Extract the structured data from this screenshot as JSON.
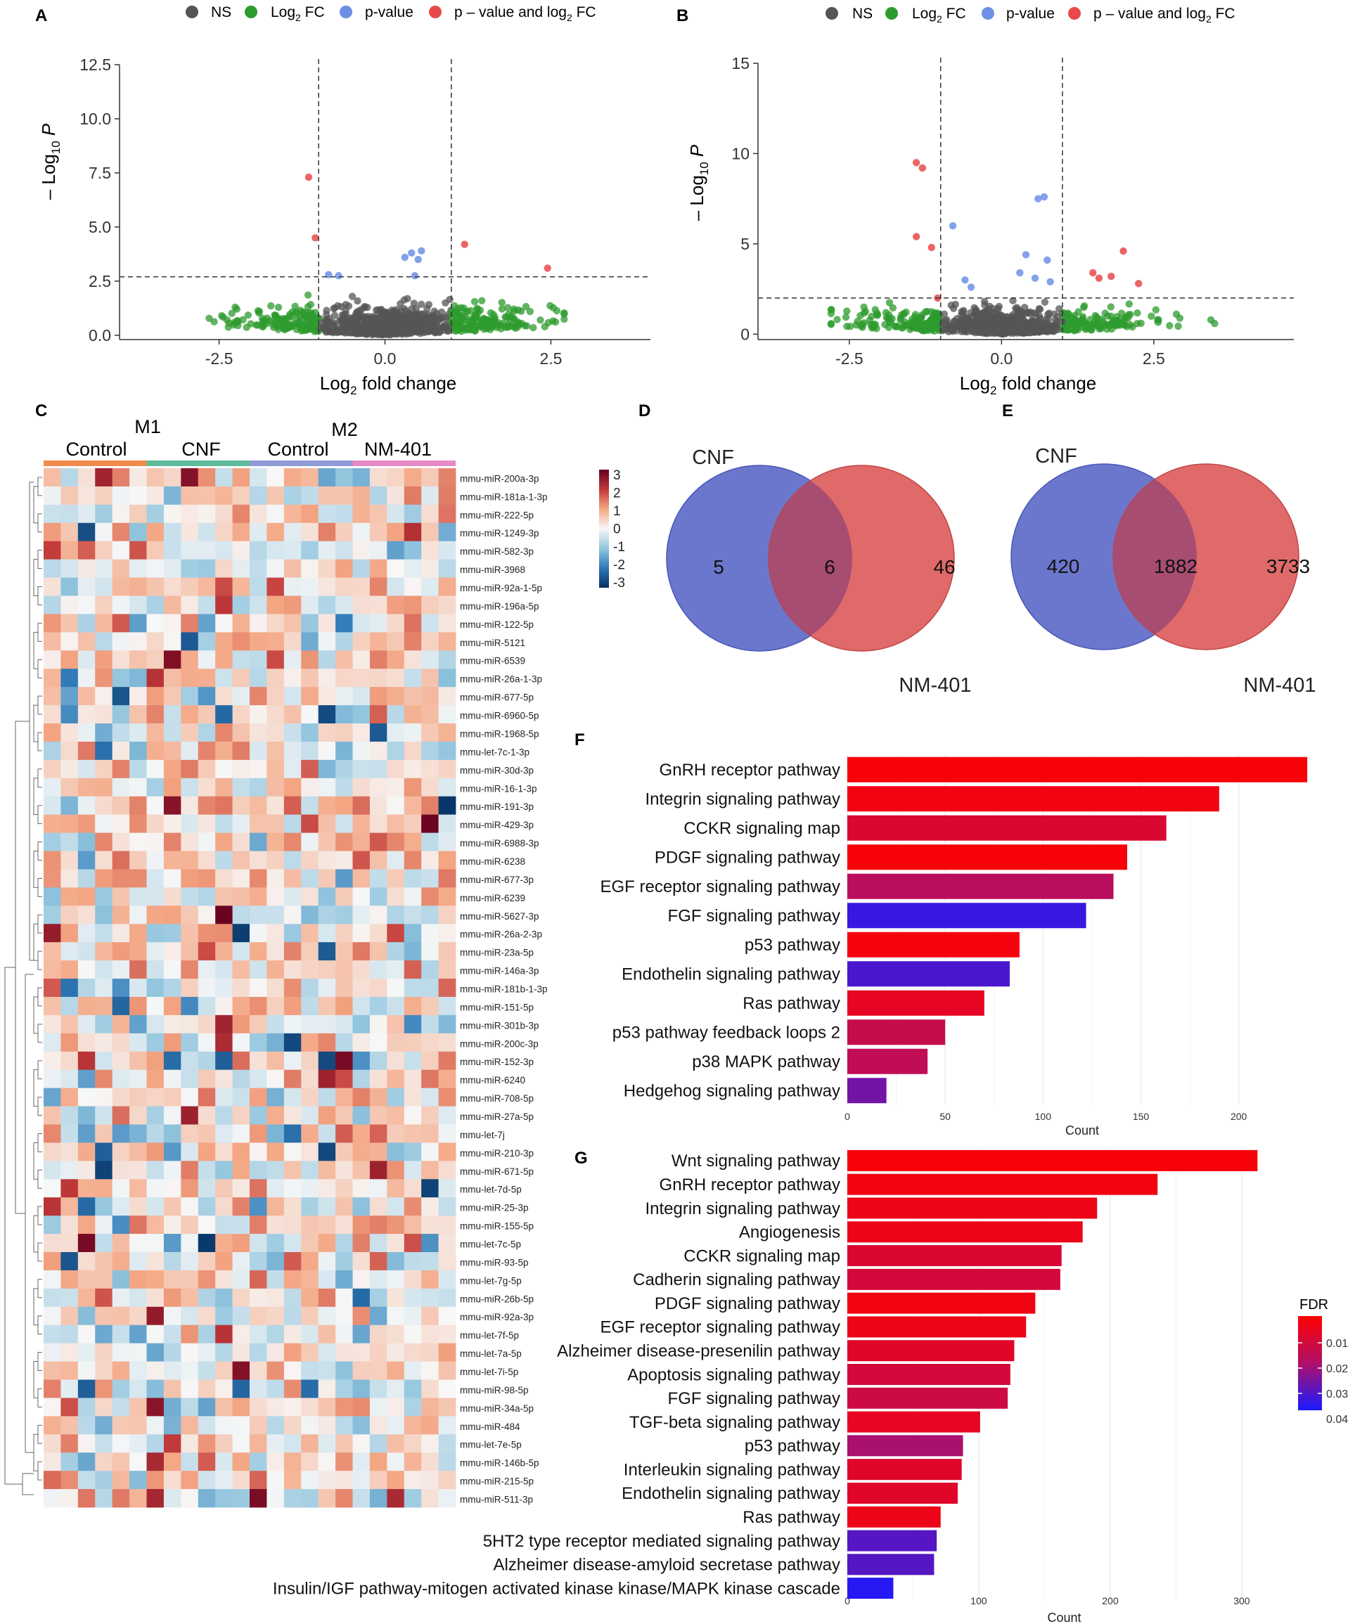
{
  "panels": {
    "A": "A",
    "B": "B",
    "C": "C",
    "D": "D",
    "E": "E",
    "F": "F",
    "G": "G"
  },
  "volcano_legend": {
    "ns": "NS",
    "log2fc": "Log",
    "log2fc_sub": "2",
    "log2fc_tail": " FC",
    "pvalue": "p-value",
    "both": "p – value and log",
    "both_sub": "2",
    "both_tail": " FC",
    "colors": {
      "ns": "#555555",
      "log2fc": "#2e9b2e",
      "pvalue": "#6d8fe6",
      "both": "#e84a4a"
    }
  },
  "volcano_axes": {
    "xlabel_pre": "Log",
    "xlabel_sub": "2",
    "xlabel_post": " fold change",
    "ylabel_pre": "– Log",
    "ylabel_sub": "10",
    "ylabel_post": " P"
  },
  "venn_D": {
    "left_label": "CNF",
    "right_label": "NM-401",
    "left_only": "5",
    "both": "6",
    "right_only": "46",
    "colors": {
      "left": "#6b77cc",
      "right": "#e06a6a",
      "overlap": "#a14a72"
    }
  },
  "venn_E": {
    "left_label": "CNF",
    "right_label": "NM-401",
    "left_only": "420",
    "both": "1882",
    "right_only": "3733",
    "colors": {
      "left": "#6b77cc",
      "right": "#e06a6a",
      "overlap": "#a14a72"
    }
  },
  "heatmap": {
    "group_top": [
      "M1",
      "M2"
    ],
    "group_bottom": [
      "Control",
      "CNF",
      "Control",
      "NM-401"
    ],
    "group_colors": [
      "#f08a4b",
      "#5dbb9a",
      "#8f9bd6",
      "#e58ac7"
    ],
    "scale_ticks": [
      "3",
      "2",
      "1",
      "0",
      "-1",
      "-2",
      "-3"
    ],
    "rows": [
      "mmu-miR-200a-3p",
      "mmu-miR-181a-1-3p",
      "mmu-miR-222-5p",
      "mmu-miR-1249-3p",
      "mmu-miR-582-3p",
      "mmu-miR-3968",
      "mmu-miR-92a-1-5p",
      "mmu-miR-196a-5p",
      "mmu-miR-122-5p",
      "mmu-miR-5121",
      "mmu-miR-6539",
      "mmu-miR-26a-1-3p",
      "mmu-miR-677-5p",
      "mmu-miR-6960-5p",
      "mmu-miR-1968-5p",
      "mmu-let-7c-1-3p",
      "mmu-miR-30d-3p",
      "mmu-miR-16-1-3p",
      "mmu-miR-191-3p",
      "mmu-miR-429-3p",
      "mmu-miR-6988-3p",
      "mmu-miR-6238",
      "mmu-miR-677-3p",
      "mmu-miR-6239",
      "mmu-miR-5627-3p",
      "mmu-miR-26a-2-3p",
      "mmu-miR-23a-5p",
      "mmu-miR-146a-3p",
      "mmu-miR-181b-1-3p",
      "mmu-miR-151-5p",
      "mmu-miR-301b-3p",
      "mmu-miR-200c-3p",
      "mmu-miR-152-3p",
      "mmu-miR-6240",
      "mmu-miR-708-5p",
      "mmu-miR-27a-5p",
      "mmu-let-7j",
      "mmu-miR-210-3p",
      "mmu-miR-671-5p",
      "mmu-let-7d-5p",
      "mmu-miR-25-3p",
      "mmu-miR-155-5p",
      "mmu-let-7c-5p",
      "mmu-miR-93-5p",
      "mmu-let-7g-5p",
      "mmu-miR-26b-5p",
      "mmu-miR-92a-3p",
      "mmu-let-7f-5p",
      "mmu-let-7a-5p",
      "mmu-let-7i-5p",
      "mmu-miR-98-5p",
      "mmu-miR-34a-5p",
      "mmu-miR-484",
      "mmu-let-7e-5p",
      "mmu-miR-146b-5p",
      "mmu-miR-215-5p",
      "mmu-miR-511-3p"
    ]
  },
  "fdr_legend": {
    "title": "FDR",
    "ticks": [
      "0.01",
      "0.02",
      "0.03",
      "0.04"
    ]
  },
  "chart_data": [
    {
      "id": "A",
      "type": "scatter",
      "title": "",
      "xlabel": "Log2 fold change",
      "ylabel": "-Log10 P",
      "xlim": [
        -4,
        4
      ],
      "ylim": [
        -0.2,
        12.5
      ],
      "xticks": [
        "-2.5",
        "0.0",
        "2.5"
      ],
      "xtick_values": [
        -2.5,
        0,
        2.5
      ],
      "yticks": [
        "0.0",
        "2.5",
        "5.0",
        "7.5",
        "10.0",
        "12.5"
      ],
      "ytick_values": [
        0,
        2.5,
        5,
        7.5,
        10,
        12.5
      ],
      "fc_cutoff": 1,
      "p_cutoff": 2.7,
      "highlight_points": [
        {
          "x": -1.15,
          "y": 7.3,
          "cls": "both"
        },
        {
          "x": -1.05,
          "y": 4.5,
          "cls": "both"
        },
        {
          "x": 1.2,
          "y": 4.2,
          "cls": "both"
        },
        {
          "x": 2.45,
          "y": 3.1,
          "cls": "both"
        },
        {
          "x": 0.4,
          "y": 3.8,
          "cls": "pvalue"
        },
        {
          "x": 0.5,
          "y": 3.5,
          "cls": "pvalue"
        },
        {
          "x": 0.55,
          "y": 3.9,
          "cls": "pvalue"
        },
        {
          "x": 0.3,
          "y": 3.6,
          "cls": "pvalue"
        },
        {
          "x": -0.85,
          "y": 2.8,
          "cls": "pvalue"
        },
        {
          "x": -0.7,
          "y": 2.75,
          "cls": "pvalue"
        },
        {
          "x": 0.45,
          "y": 2.75,
          "cls": "pvalue"
        }
      ],
      "background_points": "NS and Log2 FC points (approx. 1000 miRNAs)"
    },
    {
      "id": "B",
      "type": "scatter",
      "title": "",
      "xlabel": "Log2 fold change",
      "ylabel": "-Log10 P",
      "xlim": [
        -4,
        4.8
      ],
      "ylim": [
        -0.3,
        15
      ],
      "xticks": [
        "-2.5",
        "0.0",
        "2.5"
      ],
      "xtick_values": [
        -2.5,
        0,
        2.5
      ],
      "yticks": [
        "0",
        "5",
        "10",
        "15"
      ],
      "ytick_values": [
        0,
        5,
        10,
        15
      ],
      "fc_cutoff": 1,
      "p_cutoff": 2.0,
      "highlight_points": [
        {
          "x": -1.4,
          "y": 9.5,
          "cls": "both"
        },
        {
          "x": -1.3,
          "y": 9.2,
          "cls": "both"
        },
        {
          "x": -1.4,
          "y": 5.4,
          "cls": "both"
        },
        {
          "x": -1.15,
          "y": 4.8,
          "cls": "both"
        },
        {
          "x": -1.05,
          "y": 2.0,
          "cls": "both"
        },
        {
          "x": 1.5,
          "y": 3.4,
          "cls": "both"
        },
        {
          "x": 1.6,
          "y": 3.1,
          "cls": "both"
        },
        {
          "x": 1.8,
          "y": 3.2,
          "cls": "both"
        },
        {
          "x": 2.0,
          "y": 4.6,
          "cls": "both"
        },
        {
          "x": 2.25,
          "y": 2.8,
          "cls": "both"
        },
        {
          "x": 0.6,
          "y": 7.5,
          "cls": "pvalue"
        },
        {
          "x": 0.7,
          "y": 7.6,
          "cls": "pvalue"
        },
        {
          "x": -0.8,
          "y": 6.0,
          "cls": "pvalue"
        },
        {
          "x": 0.4,
          "y": 4.4,
          "cls": "pvalue"
        },
        {
          "x": 0.75,
          "y": 4.1,
          "cls": "pvalue"
        },
        {
          "x": 0.3,
          "y": 3.4,
          "cls": "pvalue"
        },
        {
          "x": 0.55,
          "y": 3.1,
          "cls": "pvalue"
        },
        {
          "x": -0.6,
          "y": 3.0,
          "cls": "pvalue"
        },
        {
          "x": -0.5,
          "y": 2.6,
          "cls": "pvalue"
        },
        {
          "x": 0.8,
          "y": 2.9,
          "cls": "pvalue"
        }
      ],
      "background_points": "NS and Log2 FC points (approx. 1000 miRNAs)"
    },
    {
      "id": "F",
      "type": "bar",
      "orientation": "horizontal",
      "xlabel": "Count",
      "xlim": [
        0,
        240
      ],
      "xticks": [
        "0",
        "50",
        "100",
        "150",
        "200"
      ],
      "xtick_values": [
        0,
        50,
        100,
        150,
        200
      ],
      "categories": [
        "GnRH receptor pathway",
        "Integrin signaling pathway",
        "CCKR signaling map",
        "PDGF signaling pathway",
        "EGF receptor signaling pathway",
        "FGF signaling pathway",
        "p53 pathway",
        "Endothelin signaling pathway",
        "Ras pathway",
        "p53 pathway feedback loops 2",
        "p38 MAPK pathway",
        "Hedgehog signaling pathway"
      ],
      "values": [
        235,
        190,
        163,
        143,
        136,
        122,
        88,
        83,
        70,
        50,
        41,
        20
      ],
      "fdr": [
        0.002,
        0.004,
        0.012,
        0.002,
        0.022,
        0.045,
        0.003,
        0.042,
        0.008,
        0.018,
        0.02,
        0.035
      ]
    },
    {
      "id": "G",
      "type": "bar",
      "orientation": "horizontal",
      "xlabel": "Count",
      "xlim": [
        0,
        330
      ],
      "xticks": [
        "0",
        "100",
        "200",
        "300"
      ],
      "xtick_values": [
        0,
        100,
        200,
        300
      ],
      "categories": [
        "Wnt signaling pathway",
        "GnRH receptor pathway",
        "Integrin signaling pathway",
        "Angiogenesis",
        "CCKR signaling map",
        "Cadherin signaling pathway",
        "PDGF signaling pathway",
        "EGF receptor signaling pathway",
        "Alzheimer disease-presenilin pathway",
        "Apoptosis signaling pathway",
        "FGF signaling pathway",
        "TGF-beta signaling pathway",
        "p53 pathway",
        "Interleukin signaling pathway",
        "Endothelin signaling pathway",
        "Ras pathway",
        "5HT2 type receptor mediated signaling pathway",
        "Alzheimer disease-amyloid secretase pathway",
        "Insulin/IGF pathway-mitogen activated kinase kinase/MAPK kinase cascade"
      ],
      "values": [
        312,
        236,
        190,
        179,
        163,
        162,
        143,
        136,
        127,
        124,
        122,
        101,
        88,
        87,
        84,
        71,
        68,
        66,
        35
      ],
      "fdr": [
        0.002,
        0.004,
        0.006,
        0.006,
        0.012,
        0.014,
        0.004,
        0.006,
        0.01,
        0.014,
        0.016,
        0.008,
        0.026,
        0.01,
        0.01,
        0.006,
        0.04,
        0.04,
        0.048
      ]
    }
  ]
}
